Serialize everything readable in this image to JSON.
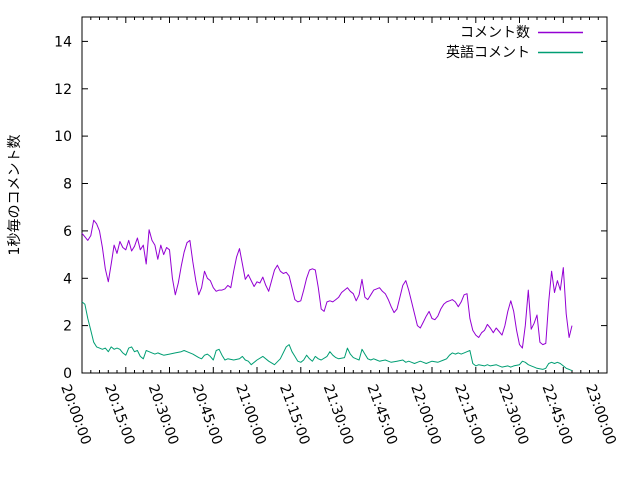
{
  "figure": {
    "background_color": "#ffffff",
    "axis_color": "#000000"
  },
  "chart_data": {
    "type": "line",
    "title": "",
    "ylabel": "1秒毎のコメント数",
    "xlabel": "",
    "grid": false,
    "legend_position": "top-right-inside",
    "ylim": [
      0,
      15.03
    ],
    "y_ticks": [
      0,
      2,
      4,
      6,
      8,
      10,
      12,
      14
    ],
    "xlim_minutes": [
      0,
      180
    ],
    "x_tick_interval_minutes": 15,
    "x_minor_interval_minutes": 3,
    "x_tick_labels": [
      "20:00:00",
      "20:15:00",
      "20:30:00",
      "20:45:00",
      "21:00:00",
      "21:15:00",
      "21:30:00",
      "21:45:00",
      "22:00:00",
      "22:15:00",
      "22:30:00",
      "22:45:00",
      "23:00:00"
    ],
    "series": [
      {
        "name": "コメント数",
        "color": "#9400d3",
        "points": [
          [
            0,
            5.9
          ],
          [
            1,
            5.75
          ],
          [
            2,
            5.6
          ],
          [
            3,
            5.8
          ],
          [
            4,
            6.45
          ],
          [
            5,
            6.3
          ],
          [
            6,
            6.0
          ],
          [
            7,
            5.3
          ],
          [
            8,
            4.4
          ],
          [
            9,
            3.85
          ],
          [
            10,
            4.6
          ],
          [
            11,
            5.4
          ],
          [
            12,
            5.05
          ],
          [
            13,
            5.55
          ],
          [
            14,
            5.3
          ],
          [
            15,
            5.2
          ],
          [
            16,
            5.6
          ],
          [
            17,
            5.15
          ],
          [
            18,
            5.35
          ],
          [
            19,
            5.7
          ],
          [
            20,
            5.2
          ],
          [
            21,
            5.4
          ],
          [
            22,
            4.6
          ],
          [
            23,
            6.05
          ],
          [
            24,
            5.6
          ],
          [
            25,
            5.4
          ],
          [
            26,
            4.8
          ],
          [
            27,
            5.4
          ],
          [
            28,
            5.0
          ],
          [
            29,
            5.3
          ],
          [
            30,
            5.2
          ],
          [
            31,
            4.0
          ],
          [
            32,
            3.3
          ],
          [
            33,
            3.8
          ],
          [
            34,
            4.5
          ],
          [
            35,
            5.1
          ],
          [
            36,
            5.5
          ],
          [
            37,
            5.6
          ],
          [
            38,
            4.7
          ],
          [
            39,
            3.9
          ],
          [
            40,
            3.3
          ],
          [
            41,
            3.6
          ],
          [
            42,
            4.3
          ],
          [
            43,
            4.0
          ],
          [
            44,
            3.9
          ],
          [
            45,
            3.6
          ],
          [
            46,
            3.45
          ],
          [
            47,
            3.5
          ],
          [
            48,
            3.5
          ],
          [
            49,
            3.55
          ],
          [
            50,
            3.7
          ],
          [
            51,
            3.6
          ],
          [
            52,
            4.3
          ],
          [
            53,
            4.9
          ],
          [
            54,
            5.25
          ],
          [
            55,
            4.6
          ],
          [
            56,
            3.95
          ],
          [
            57,
            4.15
          ],
          [
            58,
            3.9
          ],
          [
            59,
            3.65
          ],
          [
            60,
            3.85
          ],
          [
            61,
            3.8
          ],
          [
            62,
            4.05
          ],
          [
            63,
            3.7
          ],
          [
            64,
            3.45
          ],
          [
            65,
            3.9
          ],
          [
            66,
            4.35
          ],
          [
            67,
            4.55
          ],
          [
            68,
            4.3
          ],
          [
            69,
            4.2
          ],
          [
            70,
            4.25
          ],
          [
            71,
            4.1
          ],
          [
            72,
            3.6
          ],
          [
            73,
            3.1
          ],
          [
            74,
            3.0
          ],
          [
            75,
            3.05
          ],
          [
            76,
            3.5
          ],
          [
            77,
            4.0
          ],
          [
            78,
            4.35
          ],
          [
            79,
            4.4
          ],
          [
            80,
            4.35
          ],
          [
            81,
            3.6
          ],
          [
            82,
            2.7
          ],
          [
            83,
            2.6
          ],
          [
            84,
            3.0
          ],
          [
            85,
            3.05
          ],
          [
            86,
            3.0
          ],
          [
            87,
            3.1
          ],
          [
            88,
            3.2
          ],
          [
            89,
            3.4
          ],
          [
            90,
            3.5
          ],
          [
            91,
            3.6
          ],
          [
            92,
            3.45
          ],
          [
            93,
            3.35
          ],
          [
            94,
            3.05
          ],
          [
            95,
            3.3
          ],
          [
            96,
            3.95
          ],
          [
            97,
            3.2
          ],
          [
            98,
            3.1
          ],
          [
            99,
            3.3
          ],
          [
            100,
            3.5
          ],
          [
            101,
            3.55
          ],
          [
            102,
            3.6
          ],
          [
            103,
            3.45
          ],
          [
            104,
            3.35
          ],
          [
            105,
            3.1
          ],
          [
            106,
            2.8
          ],
          [
            107,
            2.55
          ],
          [
            108,
            2.7
          ],
          [
            109,
            3.2
          ],
          [
            110,
            3.7
          ],
          [
            111,
            3.9
          ],
          [
            112,
            3.5
          ],
          [
            113,
            3.0
          ],
          [
            114,
            2.5
          ],
          [
            115,
            2.0
          ],
          [
            116,
            1.9
          ],
          [
            117,
            2.15
          ],
          [
            118,
            2.4
          ],
          [
            119,
            2.6
          ],
          [
            120,
            2.3
          ],
          [
            121,
            2.25
          ],
          [
            122,
            2.4
          ],
          [
            123,
            2.7
          ],
          [
            124,
            2.9
          ],
          [
            125,
            3.0
          ],
          [
            126,
            3.05
          ],
          [
            127,
            3.1
          ],
          [
            128,
            3.0
          ],
          [
            129,
            2.8
          ],
          [
            130,
            3.0
          ],
          [
            131,
            3.3
          ],
          [
            132,
            3.35
          ],
          [
            133,
            2.3
          ],
          [
            134,
            1.8
          ],
          [
            135,
            1.6
          ],
          [
            136,
            1.5
          ],
          [
            137,
            1.7
          ],
          [
            138,
            1.8
          ],
          [
            139,
            2.05
          ],
          [
            140,
            1.9
          ],
          [
            141,
            1.7
          ],
          [
            142,
            1.9
          ],
          [
            143,
            1.75
          ],
          [
            144,
            1.6
          ],
          [
            145,
            2.0
          ],
          [
            146,
            2.6
          ],
          [
            147,
            3.05
          ],
          [
            148,
            2.6
          ],
          [
            149,
            1.8
          ],
          [
            150,
            1.2
          ],
          [
            151,
            1.05
          ],
          [
            152,
            2.0
          ],
          [
            153,
            3.5
          ],
          [
            154,
            1.85
          ],
          [
            155,
            2.1
          ],
          [
            156,
            2.45
          ],
          [
            157,
            1.3
          ],
          [
            158,
            1.2
          ],
          [
            159,
            1.25
          ],
          [
            160,
            3.0
          ],
          [
            161,
            4.3
          ],
          [
            162,
            3.4
          ],
          [
            163,
            3.9
          ],
          [
            164,
            3.5
          ],
          [
            165,
            4.45
          ],
          [
            166,
            2.5
          ],
          [
            167,
            1.5
          ],
          [
            168,
            2.0
          ]
        ]
      },
      {
        "name": "英語コメント",
        "color": "#009e73",
        "points": [
          [
            0,
            3.0
          ],
          [
            1,
            2.9
          ],
          [
            2,
            2.3
          ],
          [
            3,
            1.8
          ],
          [
            4,
            1.3
          ],
          [
            5,
            1.1
          ],
          [
            6,
            1.05
          ],
          [
            7,
            1.0
          ],
          [
            8,
            1.05
          ],
          [
            9,
            0.9
          ],
          [
            10,
            1.1
          ],
          [
            11,
            1.0
          ],
          [
            12,
            1.05
          ],
          [
            13,
            1.0
          ],
          [
            14,
            0.85
          ],
          [
            15,
            0.75
          ],
          [
            16,
            1.05
          ],
          [
            17,
            1.1
          ],
          [
            18,
            0.9
          ],
          [
            19,
            0.95
          ],
          [
            20,
            0.7
          ],
          [
            21,
            0.6
          ],
          [
            22,
            0.95
          ],
          [
            23,
            0.9
          ],
          [
            24,
            0.85
          ],
          [
            25,
            0.8
          ],
          [
            26,
            0.85
          ],
          [
            27,
            0.8
          ],
          [
            28,
            0.75
          ],
          [
            30,
            0.8
          ],
          [
            32,
            0.85
          ],
          [
            34,
            0.9
          ],
          [
            35,
            0.95
          ],
          [
            36,
            0.9
          ],
          [
            38,
            0.8
          ],
          [
            40,
            0.65
          ],
          [
            41,
            0.6
          ],
          [
            42,
            0.75
          ],
          [
            43,
            0.8
          ],
          [
            44,
            0.7
          ],
          [
            45,
            0.55
          ],
          [
            46,
            0.95
          ],
          [
            47,
            1.0
          ],
          [
            48,
            0.75
          ],
          [
            49,
            0.55
          ],
          [
            50,
            0.6
          ],
          [
            52,
            0.55
          ],
          [
            54,
            0.6
          ],
          [
            55,
            0.7
          ],
          [
            56,
            0.55
          ],
          [
            57,
            0.5
          ],
          [
            58,
            0.35
          ],
          [
            60,
            0.55
          ],
          [
            62,
            0.7
          ],
          [
            64,
            0.5
          ],
          [
            66,
            0.35
          ],
          [
            68,
            0.6
          ],
          [
            70,
            1.1
          ],
          [
            71,
            1.2
          ],
          [
            72,
            0.9
          ],
          [
            73,
            0.7
          ],
          [
            74,
            0.5
          ],
          [
            75,
            0.45
          ],
          [
            76,
            0.55
          ],
          [
            77,
            0.75
          ],
          [
            78,
            0.6
          ],
          [
            79,
            0.5
          ],
          [
            80,
            0.7
          ],
          [
            81,
            0.6
          ],
          [
            82,
            0.55
          ],
          [
            84,
            0.7
          ],
          [
            85,
            0.9
          ],
          [
            86,
            0.75
          ],
          [
            87,
            0.65
          ],
          [
            88,
            0.6
          ],
          [
            90,
            0.65
          ],
          [
            91,
            1.05
          ],
          [
            92,
            0.8
          ],
          [
            93,
            0.65
          ],
          [
            94,
            0.6
          ],
          [
            95,
            0.55
          ],
          [
            96,
            1.0
          ],
          [
            97,
            0.8
          ],
          [
            98,
            0.6
          ],
          [
            99,
            0.55
          ],
          [
            100,
            0.6
          ],
          [
            101,
            0.55
          ],
          [
            102,
            0.5
          ],
          [
            104,
            0.55
          ],
          [
            105,
            0.5
          ],
          [
            106,
            0.45
          ],
          [
            108,
            0.5
          ],
          [
            110,
            0.55
          ],
          [
            111,
            0.45
          ],
          [
            112,
            0.5
          ],
          [
            113,
            0.45
          ],
          [
            114,
            0.4
          ],
          [
            115,
            0.45
          ],
          [
            116,
            0.5
          ],
          [
            117,
            0.45
          ],
          [
            118,
            0.4
          ],
          [
            120,
            0.5
          ],
          [
            122,
            0.45
          ],
          [
            124,
            0.55
          ],
          [
            125,
            0.6
          ],
          [
            126,
            0.75
          ],
          [
            127,
            0.85
          ],
          [
            128,
            0.8
          ],
          [
            129,
            0.85
          ],
          [
            130,
            0.8
          ],
          [
            131,
            0.85
          ],
          [
            132,
            0.9
          ],
          [
            133,
            0.95
          ],
          [
            134,
            0.4
          ],
          [
            135,
            0.3
          ],
          [
            136,
            0.35
          ],
          [
            138,
            0.3
          ],
          [
            139,
            0.35
          ],
          [
            140,
            0.3
          ],
          [
            142,
            0.35
          ],
          [
            143,
            0.3
          ],
          [
            144,
            0.25
          ],
          [
            146,
            0.3
          ],
          [
            147,
            0.25
          ],
          [
            148,
            0.3
          ],
          [
            150,
            0.35
          ],
          [
            151,
            0.5
          ],
          [
            152,
            0.45
          ],
          [
            153,
            0.35
          ],
          [
            154,
            0.3
          ],
          [
            155,
            0.25
          ],
          [
            156,
            0.2
          ],
          [
            158,
            0.15
          ],
          [
            159,
            0.2
          ],
          [
            160,
            0.4
          ],
          [
            161,
            0.45
          ],
          [
            162,
            0.4
          ],
          [
            163,
            0.45
          ],
          [
            164,
            0.4
          ],
          [
            165,
            0.3
          ],
          [
            166,
            0.2
          ],
          [
            167,
            0.15
          ],
          [
            168,
            0.1
          ]
        ]
      }
    ]
  }
}
